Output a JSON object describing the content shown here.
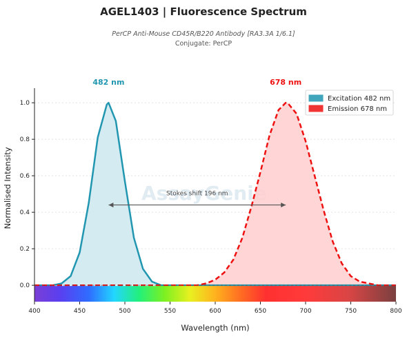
{
  "header": {
    "title": "AGEL1403  |  Fluorescence Spectrum",
    "subtitle": "PerCP Anti-Mouse CD45R/B220 Antibody [RA3.3A 1/6.1]",
    "conjugate": "Conjugate: PerCP"
  },
  "watermark": "AssayGenie",
  "chart_data": {
    "type": "area",
    "xlabel": "Wavelength (nm)",
    "ylabel": "Normalised Intensity",
    "xlim": [
      400,
      800
    ],
    "ylim": [
      -0.09,
      1.08
    ],
    "x_ticks": [
      400,
      450,
      500,
      550,
      600,
      650,
      700,
      750,
      800
    ],
    "y_ticks": [
      0.0,
      0.2,
      0.4,
      0.6,
      0.8,
      1.0
    ],
    "x_tick_labels": [
      "400",
      "450",
      "500",
      "550",
      "600",
      "650",
      "700",
      "750",
      "800"
    ],
    "y_tick_labels": [
      "0.0",
      "0.2",
      "0.4",
      "0.6",
      "0.8",
      "1.0"
    ],
    "grid": "horizontal",
    "legend_position": "top-right",
    "x": [
      400,
      410,
      420,
      430,
      440,
      450,
      460,
      470,
      480,
      482,
      490,
      500,
      510,
      520,
      530,
      540,
      550,
      560,
      570,
      580,
      590,
      600,
      610,
      620,
      630,
      640,
      650,
      660,
      670,
      678,
      680,
      690,
      700,
      710,
      720,
      730,
      740,
      750,
      760,
      770,
      780,
      790,
      800
    ],
    "series": [
      {
        "name": "Excitation  482 nm",
        "peak": 482,
        "peak_label": "482 nm",
        "color": "#2196b0",
        "fill": "#cfe9f0",
        "line_style": "solid",
        "values": [
          0.0,
          0.0,
          0.0,
          0.01,
          0.05,
          0.18,
          0.45,
          0.81,
          0.99,
          1.0,
          0.9,
          0.57,
          0.26,
          0.09,
          0.02,
          0.0,
          0.0,
          0.0,
          0.0,
          0.0,
          0.0,
          0.0,
          0.0,
          0.0,
          0.0,
          0.0,
          0.0,
          0.0,
          0.0,
          0.0,
          0.0,
          0.0,
          0.0,
          0.0,
          0.0,
          0.0,
          0.0,
          0.0,
          0.0,
          0.0,
          0.0,
          0.0,
          0.0
        ]
      },
      {
        "name": "Emission  678 nm",
        "peak": 678,
        "peak_label": "678 nm",
        "color": "#ee1111",
        "fill": "#ffd0d0",
        "line_style": "dashed",
        "values": [
          0.0,
          0.0,
          0.0,
          0.0,
          0.0,
          0.0,
          0.0,
          0.0,
          0.0,
          0.0,
          0.0,
          0.0,
          0.0,
          0.0,
          0.0,
          0.0,
          0.0,
          0.0,
          0.0,
          0.0,
          0.01,
          0.03,
          0.07,
          0.14,
          0.26,
          0.43,
          0.62,
          0.82,
          0.96,
          1.0,
          1.0,
          0.94,
          0.79,
          0.6,
          0.41,
          0.24,
          0.12,
          0.05,
          0.02,
          0.01,
          0.0,
          0.0,
          0.0
        ]
      }
    ],
    "annotation": {
      "text": "Stokes shift  196 nm",
      "from": 482,
      "to": 678,
      "y": 0.44
    },
    "colorbar": "visible spectrum gradient 400–800 nm"
  }
}
